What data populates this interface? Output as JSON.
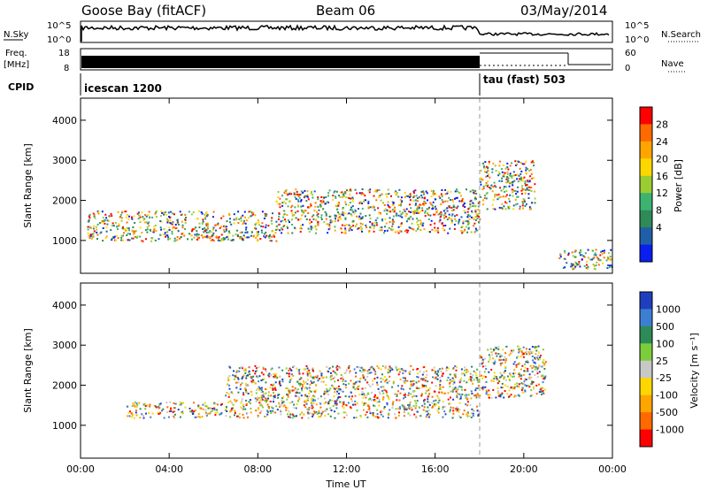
{
  "header": {
    "station": "Goose Bay (fitACF)",
    "beam": "Beam 06",
    "date": "03/May/2014"
  },
  "noise_panel": {
    "left_label": "N.Sky",
    "left_ticks": [
      "10^5",
      "10^0"
    ],
    "right_label": "N.Search",
    "right_ticks": [
      "10^5",
      "10^0"
    ]
  },
  "freq_panel": {
    "left_label_line1": "Freq.",
    "left_label_line2": "[MHz]",
    "left_ticks": [
      "18",
      "8"
    ],
    "right_label": "Nave",
    "right_ticks": [
      "60",
      "0"
    ]
  },
  "cpid_panel": {
    "label": "CPID",
    "modes": [
      {
        "name": "icescan 1200",
        "start": "00:00"
      },
      {
        "name": "tau (fast) 503",
        "start": "18:00"
      }
    ]
  },
  "chart_data": [
    {
      "type": "heatmap",
      "title": "Power",
      "ylabel": "Slant Range [km]",
      "xlabel": "",
      "ylim": [
        180,
        4550
      ],
      "yticks": [
        "1000",
        "2000",
        "3000",
        "4000"
      ],
      "xlim_hours": [
        0,
        24
      ],
      "colorbar": {
        "label": "Power [dB]",
        "ticks": [
          "28",
          "24",
          "20",
          "16",
          "12",
          "8",
          "4"
        ],
        "colors": [
          "#ff0000",
          "#ff6a00",
          "#ffa500",
          "#ffd700",
          "#9acd32",
          "#3cb371",
          "#2e8b57",
          "#1f5fa8",
          "#0a1ef0"
        ]
      },
      "echo_regions": [
        {
          "hours": [
            0.3,
            8.8
          ],
          "range_km": [
            1000,
            1750
          ],
          "level": "16-28 dB"
        },
        {
          "hours": [
            8.8,
            18.0
          ],
          "range_km": [
            1200,
            2300
          ],
          "level": "4-12 dB"
        },
        {
          "hours": [
            18.0,
            20.5
          ],
          "range_km": [
            1800,
            3000
          ],
          "level": "8-24 dB"
        },
        {
          "hours": [
            21.5,
            24.0
          ],
          "range_km": [
            300,
            800
          ],
          "level": "12-28 dB"
        }
      ]
    },
    {
      "type": "heatmap",
      "title": "Velocity",
      "ylabel": "Slant Range [km]",
      "xlabel": "Time UT",
      "ylim": [
        180,
        4550
      ],
      "yticks": [
        "1000",
        "2000",
        "3000",
        "4000"
      ],
      "xticks": [
        "00:00",
        "04:00",
        "08:00",
        "12:00",
        "16:00",
        "20:00",
        "00:00"
      ],
      "xlim_hours": [
        0,
        24
      ],
      "colorbar": {
        "label": "Velocity [m s⁻¹]",
        "ticks": [
          "1000",
          "500",
          "100",
          "25",
          "-25",
          "-100",
          "-500",
          "-1000"
        ],
        "colors": [
          "#1f3fbf",
          "#3c7fd0",
          "#2e8b57",
          "#7ccd3c",
          "#c8c8c8",
          "#ffd700",
          "#ffa500",
          "#ff6a00",
          "#ff0000"
        ]
      },
      "echo_regions": [
        {
          "hours": [
            2.0,
            6.5
          ],
          "range_km": [
            1200,
            1600
          ],
          "level": "-100 to -1000 m/s"
        },
        {
          "hours": [
            6.5,
            18.0
          ],
          "range_km": [
            1200,
            2500
          ],
          "level": "ground scatter"
        },
        {
          "hours": [
            18.0,
            21.0
          ],
          "range_km": [
            1700,
            3000
          ],
          "level": "mixed"
        }
      ]
    }
  ]
}
